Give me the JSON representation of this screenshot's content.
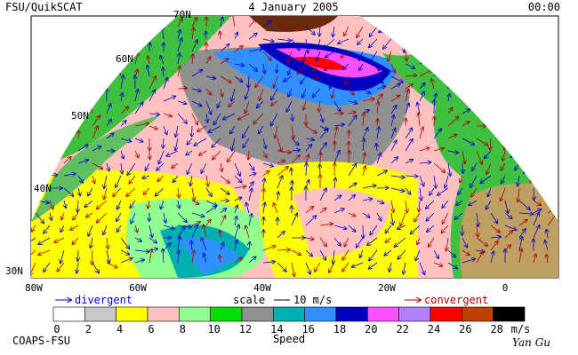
{
  "header": {
    "source": "FSU/QuikSCAT",
    "date": "4 January 2005",
    "time": "00:00"
  },
  "latitude_labels": [
    "70N",
    "60N",
    "50N",
    "40N",
    "30N"
  ],
  "longitude_labels": [
    "80W",
    "60W",
    "40W",
    "20W",
    "0"
  ],
  "legend": {
    "divergent": "divergent",
    "scale": "scale",
    "scale_value": "10 m/s",
    "convergent": "convergent"
  },
  "colorbar": {
    "ticks": [
      0,
      2,
      4,
      6,
      8,
      10,
      12,
      14,
      16,
      18,
      20,
      22,
      24,
      26,
      28
    ],
    "colors": [
      "#ffffff",
      "#c8c8c8",
      "#ffff00",
      "#ffc0c0",
      "#90ff90",
      "#00e000",
      "#909090",
      "#00b0b0",
      "#3090ff",
      "#0000c0",
      "#ff50ff",
      "#b080ff",
      "#ff0000",
      "#c04000",
      "#000000"
    ],
    "unit": "m/s",
    "label": "Speed"
  },
  "footer": {
    "institution": "COAPS-FSU",
    "author": "Yan Gu"
  }
}
